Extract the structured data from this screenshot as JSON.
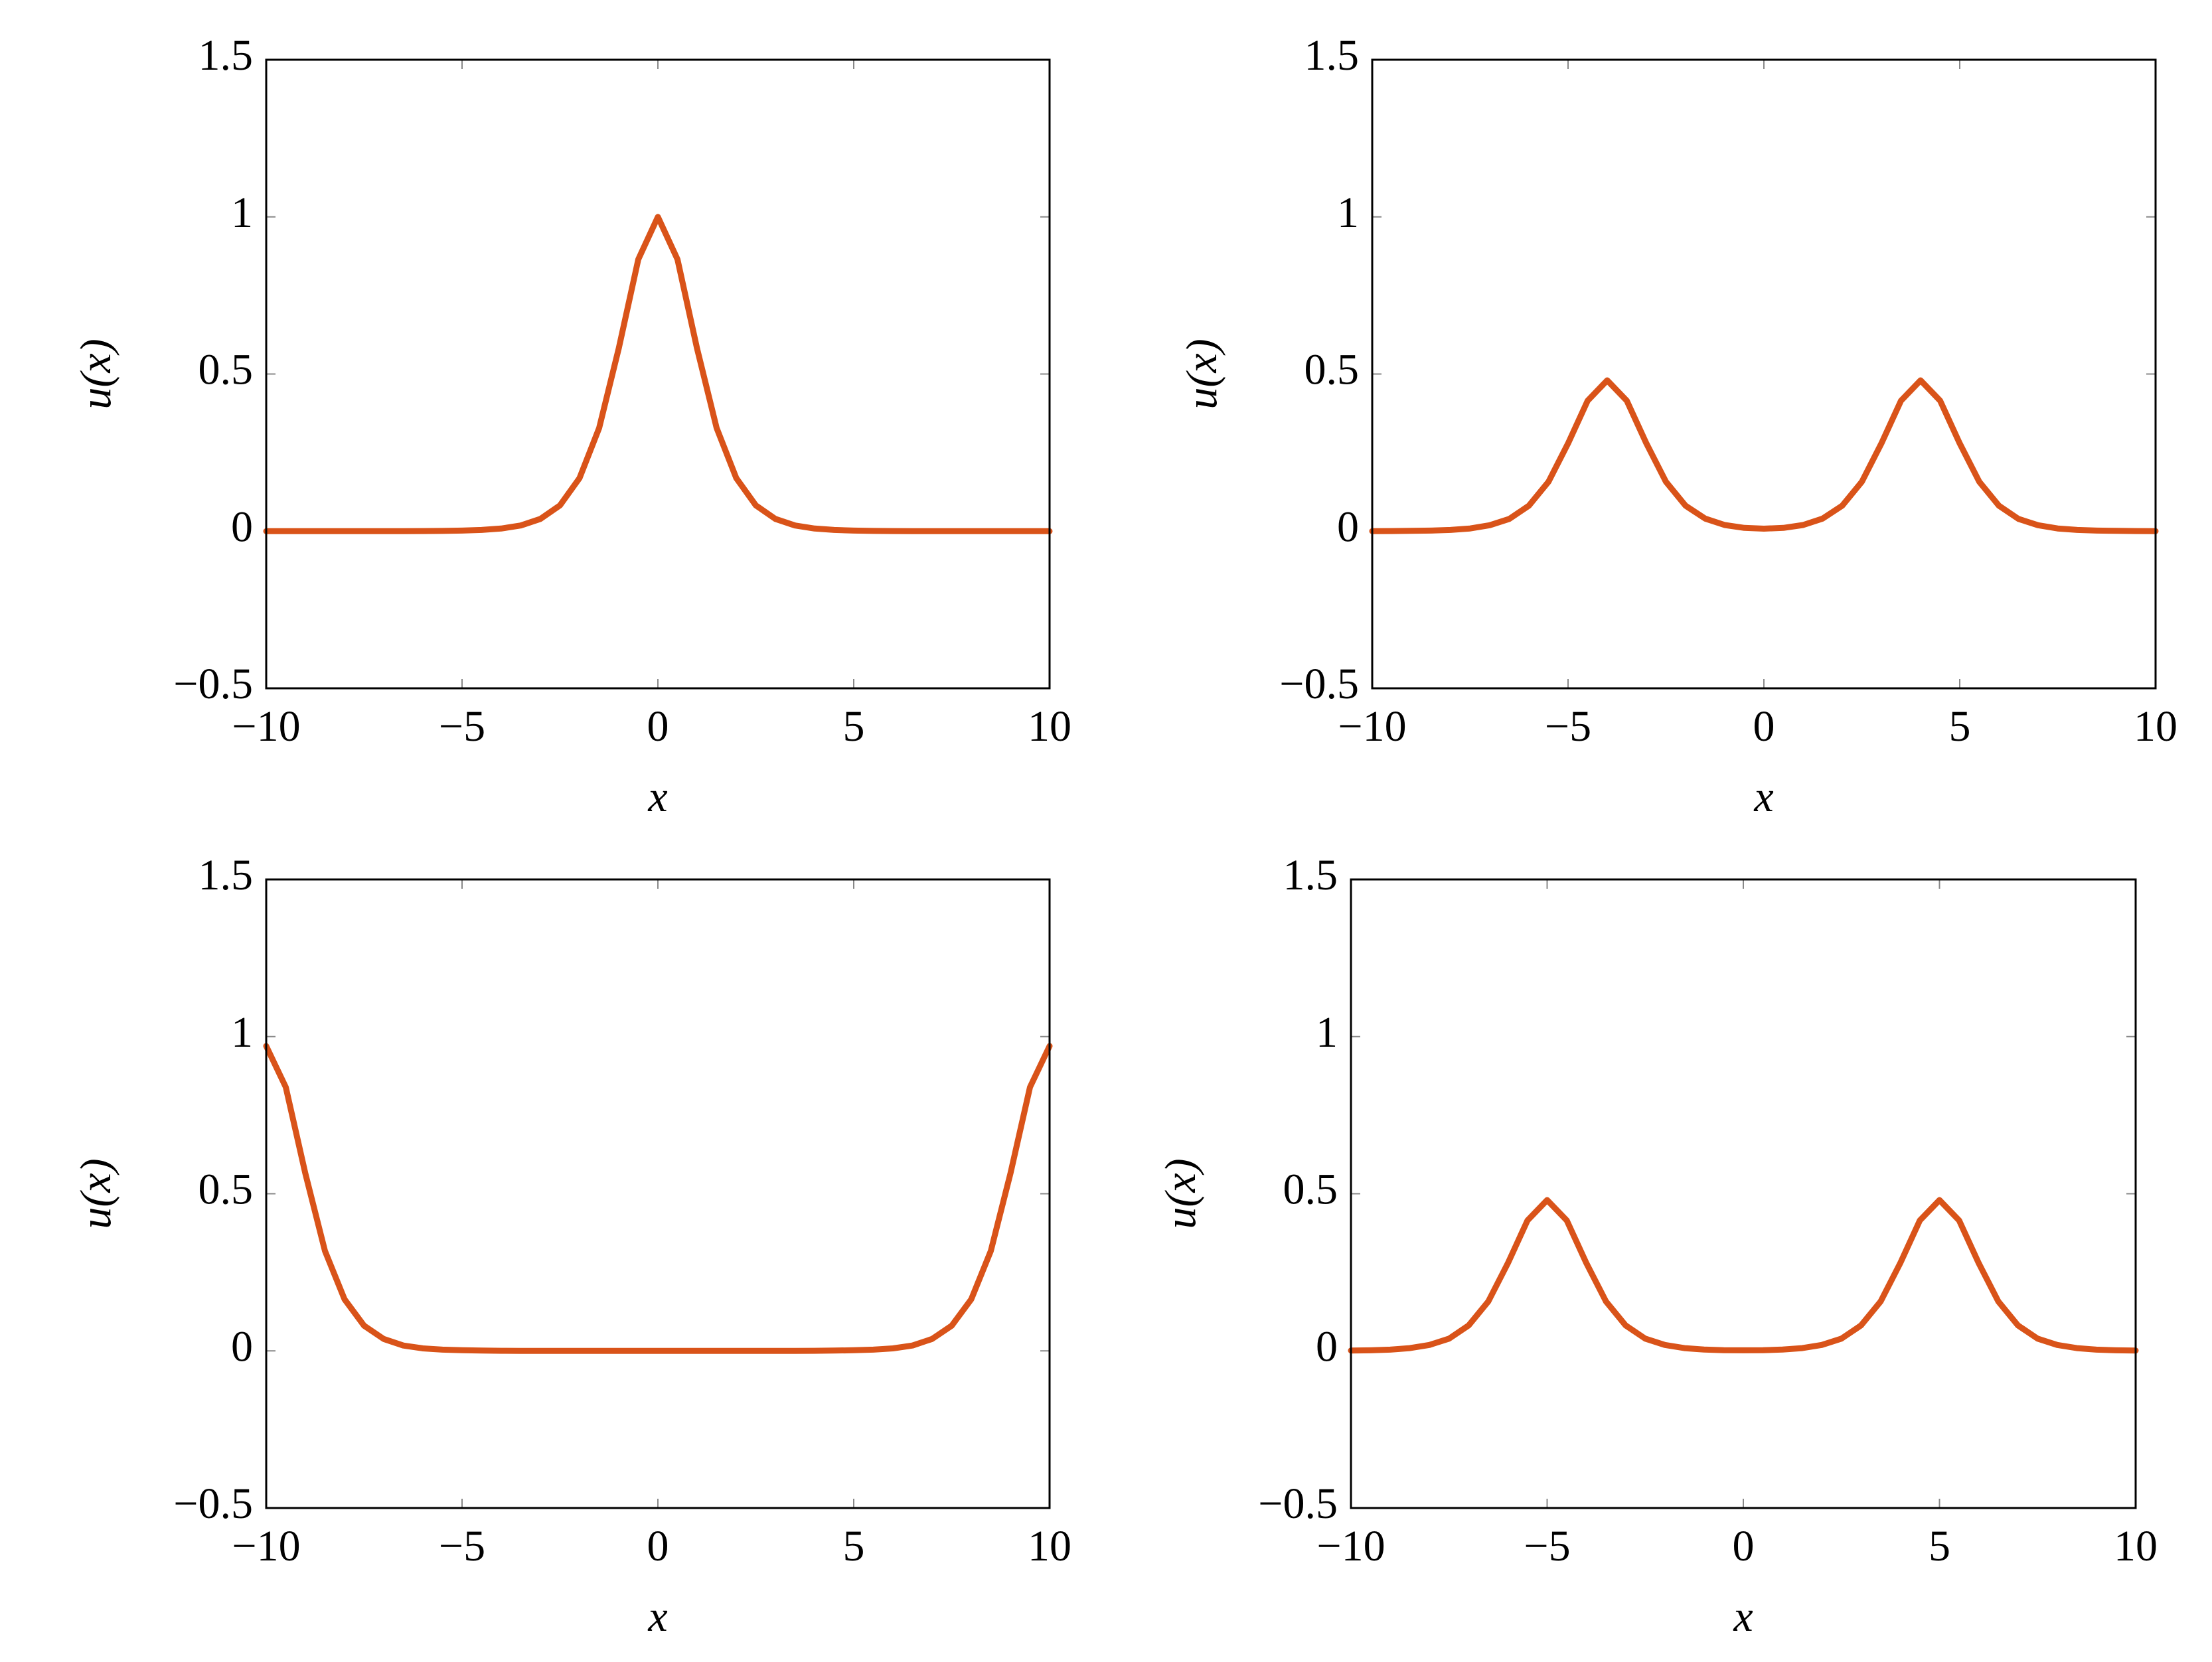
{
  "chart_data": [
    {
      "type": "line",
      "xlabel": "x",
      "ylabel": "u(x)",
      "color": "#d95319",
      "x": [
        -10,
        -9.5,
        -9,
        -8.5,
        -8,
        -7.5,
        -7,
        -6.5,
        -6,
        -5.5,
        -5,
        -4.5,
        -4,
        -3.5,
        -3,
        -2.5,
        -2,
        -1.5,
        -1,
        -0.5,
        0,
        0.5,
        1,
        1.5,
        2,
        2.5,
        3,
        3.5,
        4,
        4.5,
        5,
        5.5,
        6,
        6.5,
        7,
        7.5,
        8,
        8.5,
        9,
        9.5,
        10
      ],
      "values": [
        0,
        0,
        0,
        0,
        0,
        0,
        0.0001,
        0.0002,
        0.0004,
        0.0008,
        0.0018,
        0.0039,
        0.0084,
        0.018,
        0.039,
        0.082,
        0.169,
        0.328,
        0.581,
        0.865,
        1,
        0.865,
        0.581,
        0.328,
        0.169,
        0.082,
        0.039,
        0.018,
        0.0084,
        0.0039,
        0.0018,
        0.0008,
        0.0004,
        0.0002,
        0.0001,
        0,
        0,
        0,
        0,
        0,
        0
      ],
      "xlim": [
        -10,
        10
      ],
      "ylim": [
        -0.5,
        1.5
      ],
      "xticks": [
        {
          "value": -10,
          "label": "−10"
        },
        {
          "value": -5,
          "label": "−5"
        },
        0,
        5,
        10
      ],
      "yticks": [
        {
          "value": -0.5,
          "label": "−0.5"
        },
        0,
        0.5,
        1,
        1.5
      ]
    },
    {
      "type": "line",
      "xlabel": "x",
      "ylabel": "u(x)",
      "color": "#d95319",
      "x": [
        -10,
        -9.5,
        -9,
        -8.5,
        -8,
        -7.5,
        -7,
        -6.5,
        -6,
        -5.5,
        -5,
        -4.5,
        -4,
        -3.5,
        -3,
        -2.5,
        -2,
        -1.5,
        -1,
        -0.5,
        0,
        0.5,
        1,
        1.5,
        2,
        2.5,
        3,
        3.5,
        4,
        4.5,
        5,
        5.5,
        6,
        6.5,
        7,
        7.5,
        8,
        8.5,
        9,
        9.5,
        10
      ],
      "values": [
        0.0002,
        0.0004,
        0.0009,
        0.0019,
        0.004,
        0.0086,
        0.019,
        0.039,
        0.081,
        0.157,
        0.279,
        0.415,
        0.48,
        0.415,
        0.279,
        0.157,
        0.081,
        0.04,
        0.0196,
        0.0105,
        0.008,
        0.0105,
        0.0196,
        0.04,
        0.081,
        0.157,
        0.279,
        0.415,
        0.48,
        0.415,
        0.279,
        0.157,
        0.081,
        0.039,
        0.019,
        0.0086,
        0.004,
        0.0019,
        0.0009,
        0.0004,
        0.0002
      ],
      "xlim": [
        -10,
        10
      ],
      "ylim": [
        -0.5,
        1.5
      ],
      "xticks": [
        {
          "value": -10,
          "label": "−10"
        },
        {
          "value": -5,
          "label": "−5"
        },
        0,
        5,
        10
      ],
      "yticks": [
        {
          "value": -0.5,
          "label": "−0.5"
        },
        0,
        0.5,
        1,
        1.5
      ]
    },
    {
      "type": "line",
      "xlabel": "x",
      "ylabel": "u(x)",
      "color": "#d95319",
      "x": [
        -10,
        -9.5,
        -9,
        -8.5,
        -8,
        -7.5,
        -7,
        -6.5,
        -6,
        -5.5,
        -5,
        -4.5,
        -4,
        -3.5,
        -3,
        -2.5,
        -2,
        -1.5,
        -1,
        -0.5,
        0,
        0.5,
        1,
        1.5,
        2,
        2.5,
        3,
        3.5,
        4,
        4.5,
        5,
        5.5,
        6,
        6.5,
        7,
        7.5,
        8,
        8.5,
        9,
        9.5,
        10
      ],
      "values": [
        0.97,
        0.839,
        0.564,
        0.318,
        0.164,
        0.08,
        0.038,
        0.017,
        0.008,
        0.004,
        0.002,
        0.001,
        0.0004,
        0.0002,
        0.0001,
        0,
        0,
        0,
        0,
        0,
        0,
        0,
        0,
        0,
        0,
        0,
        0.0001,
        0.0002,
        0.0004,
        0.001,
        0.002,
        0.004,
        0.008,
        0.017,
        0.038,
        0.08,
        0.164,
        0.318,
        0.564,
        0.839,
        0.97
      ],
      "xlim": [
        -10,
        10
      ],
      "ylim": [
        -0.5,
        1.5
      ],
      "xticks": [
        {
          "value": -10,
          "label": "−10"
        },
        {
          "value": -5,
          "label": "−5"
        },
        0,
        5,
        10
      ],
      "yticks": [
        {
          "value": -0.5,
          "label": "−0.5"
        },
        0,
        0.5,
        1,
        1.5
      ]
    },
    {
      "type": "line",
      "xlabel": "x",
      "ylabel": "u(x)",
      "color": "#d95319",
      "x": [
        -10,
        -9.5,
        -9,
        -8.5,
        -8,
        -7.5,
        -7,
        -6.5,
        -6,
        -5.5,
        -5,
        -4.5,
        -4,
        -3.5,
        -3,
        -2.5,
        -2,
        -1.5,
        -1,
        -0.5,
        0,
        0.5,
        1,
        1.5,
        2,
        2.5,
        3,
        3.5,
        4,
        4.5,
        5,
        5.5,
        6,
        6.5,
        7,
        7.5,
        8,
        8.5,
        9,
        9.5,
        10
      ],
      "values": [
        0.0009,
        0.0019,
        0.004,
        0.0087,
        0.019,
        0.039,
        0.081,
        0.157,
        0.279,
        0.415,
        0.48,
        0.415,
        0.279,
        0.157,
        0.081,
        0.039,
        0.019,
        0.0087,
        0.0042,
        0.0023,
        0.0017,
        0.0023,
        0.0042,
        0.0087,
        0.019,
        0.039,
        0.081,
        0.157,
        0.279,
        0.415,
        0.48,
        0.415,
        0.279,
        0.157,
        0.081,
        0.039,
        0.019,
        0.0087,
        0.004,
        0.0019,
        0.0009
      ],
      "xlim": [
        -10,
        10
      ],
      "ylim": [
        -0.5,
        1.5
      ],
      "xticks": [
        {
          "value": -10,
          "label": "−10"
        },
        {
          "value": -5,
          "label": "−5"
        },
        0,
        5,
        10
      ],
      "yticks": [
        {
          "value": -0.5,
          "label": "−0.5"
        },
        0,
        0.5,
        1,
        1.5
      ]
    }
  ]
}
